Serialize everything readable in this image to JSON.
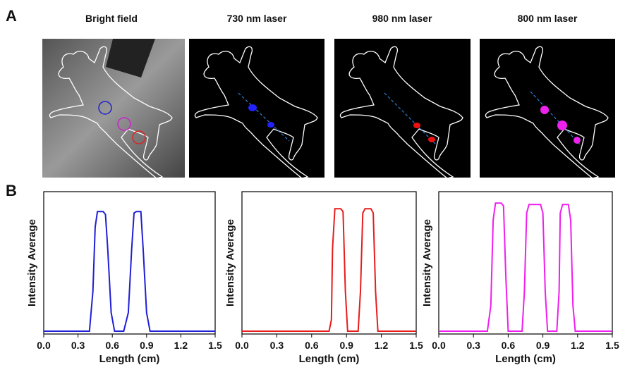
{
  "panel_labels": [
    "A",
    "B"
  ],
  "images": [
    {
      "title": "Bright field"
    },
    {
      "title": "730 nm laser"
    },
    {
      "title": "980 nm laser"
    },
    {
      "title": "800 nm laser"
    }
  ],
  "chart_data": [
    {
      "type": "line",
      "xlabel": "Length (cm)",
      "ylabel": "Intensity Average",
      "color": "#1f1fd6",
      "xlim": [
        0,
        1.5
      ],
      "ylim": [
        0,
        1
      ],
      "xticks": [
        {
          "value": 0,
          "label": "0.0"
        },
        0.3,
        0.6,
        0.9,
        1.2,
        1.5
      ],
      "x": [
        0,
        0.4,
        0.43,
        0.45,
        0.47,
        0.52,
        0.54,
        0.56,
        0.59,
        0.62,
        0.7,
        0.74,
        0.77,
        0.79,
        0.81,
        0.85,
        0.87,
        0.9,
        0.93,
        1.5
      ],
      "values": [
        0.02,
        0.02,
        0.3,
        0.75,
        0.86,
        0.86,
        0.84,
        0.6,
        0.15,
        0.02,
        0.02,
        0.15,
        0.6,
        0.85,
        0.86,
        0.86,
        0.6,
        0.15,
        0.02,
        0.02
      ]
    },
    {
      "type": "line",
      "xlabel": "Length (cm)",
      "ylabel": "Intensity Average",
      "color": "#e81c1c",
      "xlim": [
        0,
        1.5
      ],
      "ylim": [
        0,
        1
      ],
      "xticks": [
        {
          "value": 0,
          "label": "0.0"
        },
        0.3,
        0.6,
        0.9,
        1.2,
        1.5
      ],
      "x": [
        0,
        0.75,
        0.77,
        0.78,
        0.8,
        0.85,
        0.87,
        0.89,
        0.91,
        1.0,
        1.02,
        1.04,
        1.06,
        1.11,
        1.13,
        1.15,
        1.17,
        1.5
      ],
      "values": [
        0.02,
        0.02,
        0.1,
        0.6,
        0.88,
        0.88,
        0.86,
        0.3,
        0.02,
        0.02,
        0.3,
        0.85,
        0.88,
        0.88,
        0.85,
        0.3,
        0.02,
        0.02
      ]
    },
    {
      "type": "line",
      "xlabel": "Length (cm)",
      "ylabel": "Intensity Average",
      "color": "#ee1fee",
      "xlim": [
        0,
        1.5
      ],
      "ylim": [
        0,
        1
      ],
      "xticks": [
        {
          "value": 0,
          "label": "0.0"
        },
        0.3,
        0.6,
        0.9,
        1.2,
        1.5
      ],
      "x": [
        0,
        0.42,
        0.45,
        0.47,
        0.49,
        0.54,
        0.56,
        0.58,
        0.6,
        0.72,
        0.74,
        0.76,
        0.78,
        0.88,
        0.9,
        0.92,
        0.94,
        1.02,
        1.04,
        1.05,
        1.07,
        1.12,
        1.14,
        1.16,
        1.18,
        1.5
      ],
      "values": [
        0.02,
        0.02,
        0.2,
        0.8,
        0.92,
        0.92,
        0.9,
        0.4,
        0.02,
        0.02,
        0.3,
        0.85,
        0.91,
        0.91,
        0.85,
        0.3,
        0.02,
        0.02,
        0.3,
        0.85,
        0.91,
        0.91,
        0.8,
        0.2,
        0.02,
        0.02
      ]
    }
  ]
}
